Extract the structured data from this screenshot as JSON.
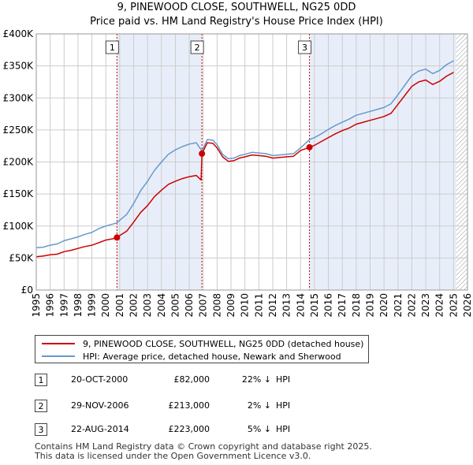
{
  "title_line1": "9, PINEWOOD CLOSE, SOUTHWELL, NG25 0DD",
  "title_line2": "Price paid vs. HM Land Registry's House Price Index (HPI)",
  "legend": {
    "series1": "9, PINEWOOD CLOSE, SOUTHWELL, NG25 0DD (detached house)",
    "series2": "HPI: Average price, detached house, Newark and Sherwood"
  },
  "transactions": [
    {
      "num": "1",
      "date": "20-OCT-2000",
      "price": "£82,000",
      "pct": "22% ↓",
      "hpi": "HPI"
    },
    {
      "num": "2",
      "date": "29-NOV-2006",
      "price": "£213,000",
      "pct": "2% ↓",
      "hpi": "HPI"
    },
    {
      "num": "3",
      "date": "22-AUG-2014",
      "price": "£223,000",
      "pct": "5% ↓",
      "hpi": "HPI"
    }
  ],
  "footer_line1": "Contains HM Land Registry data © Crown copyright and database right 2025.",
  "footer_line2": "This data is licensed under the Open Government Licence v3.0.",
  "colors": {
    "price_line": "#cc0000",
    "hpi_line": "#6699cc",
    "shade": "#e8eef9",
    "grid": "#cccccc",
    "marker_line": "#cc0000",
    "hatch": "#999999"
  },
  "chart_data": {
    "type": "line",
    "title": "9, PINEWOOD CLOSE, SOUTHWELL, NG25 0DD",
    "subtitle": "Price paid vs. HM Land Registry's House Price Index (HPI)",
    "xlim": [
      1995,
      2026
    ],
    "ylim": [
      0,
      400000
    ],
    "x_ticks": [
      "1995",
      "1996",
      "1997",
      "1998",
      "1999",
      "2000",
      "2001",
      "2002",
      "2003",
      "2004",
      "2005",
      "2006",
      "2007",
      "2008",
      "2009",
      "2010",
      "2011",
      "2012",
      "2013",
      "2014",
      "2015",
      "2016",
      "2017",
      "2018",
      "2019",
      "2020",
      "2021",
      "2022",
      "2023",
      "2024",
      "2025",
      "2026"
    ],
    "y_ticks": [
      {
        "value": 0,
        "label": "£0"
      },
      {
        "value": 50000,
        "label": "£50K"
      },
      {
        "value": 100000,
        "label": "£100K"
      },
      {
        "value": 150000,
        "label": "£150K"
      },
      {
        "value": 200000,
        "label": "£200K"
      },
      {
        "value": 250000,
        "label": "£250K"
      },
      {
        "value": 300000,
        "label": "£300K"
      },
      {
        "value": 350000,
        "label": "£350K"
      },
      {
        "value": 400000,
        "label": "£400K"
      }
    ],
    "grid": true,
    "forecast_start": 2025.2,
    "sales": [
      {
        "label": "1",
        "x": 2000.8,
        "y": 82000
      },
      {
        "label": "2",
        "x": 2006.91,
        "y": 213000
      },
      {
        "label": "3",
        "x": 2014.64,
        "y": 223000
      }
    ],
    "series": [
      {
        "name": "HPI: Average price, detached house, Newark and Sherwood",
        "x": [
          1995.0,
          1995.5,
          1996.0,
          1996.5,
          1997.0,
          1997.5,
          1998.0,
          1998.5,
          1999.0,
          1999.5,
          2000.0,
          2000.5,
          2000.8,
          2001.0,
          2001.5,
          2002.0,
          2002.5,
          2003.0,
          2003.5,
          2004.0,
          2004.5,
          2005.0,
          2005.5,
          2006.0,
          2006.5,
          2006.91,
          2007.3,
          2007.7,
          2008.0,
          2008.4,
          2008.8,
          2009.2,
          2009.6,
          2010.0,
          2010.5,
          2011.0,
          2011.5,
          2012.0,
          2012.5,
          2013.0,
          2013.5,
          2014.0,
          2014.64,
          2015.0,
          2015.5,
          2016.0,
          2016.5,
          2017.0,
          2017.5,
          2018.0,
          2018.5,
          2019.0,
          2019.5,
          2020.0,
          2020.5,
          2021.0,
          2021.5,
          2022.0,
          2022.5,
          2023.0,
          2023.5,
          2024.0,
          2024.5,
          2025.0
        ],
        "values": [
          66000,
          67000,
          70000,
          72000,
          77000,
          80000,
          83000,
          87000,
          90000,
          96000,
          100000,
          103000,
          105000,
          109000,
          118000,
          135000,
          155000,
          170000,
          187000,
          200000,
          212000,
          219000,
          224000,
          228000,
          230000,
          217000,
          235000,
          234000,
          227000,
          212000,
          205000,
          206000,
          210000,
          212000,
          215000,
          214000,
          213000,
          210000,
          211000,
          212000,
          213000,
          222000,
          235000,
          238000,
          244000,
          251000,
          257000,
          262000,
          267000,
          273000,
          276000,
          279000,
          282000,
          285000,
          291000,
          305000,
          320000,
          335000,
          342000,
          345000,
          338000,
          343000,
          352000,
          358000
        ]
      },
      {
        "name": "9, PINEWOOD CLOSE, SOUTHWELL, NG25 0DD (detached house)",
        "x": [
          1995.0,
          1995.5,
          1996.0,
          1996.5,
          1997.0,
          1997.5,
          1998.0,
          1998.5,
          1999.0,
          1999.5,
          2000.0,
          2000.5,
          2000.8,
          2001.0,
          2001.5,
          2002.0,
          2002.5,
          2003.0,
          2003.5,
          2004.0,
          2004.5,
          2005.0,
          2005.5,
          2006.0,
          2006.5,
          2006.85,
          2006.91,
          2007.3,
          2007.7,
          2008.0,
          2008.4,
          2008.8,
          2009.2,
          2009.6,
          2010.0,
          2010.5,
          2011.0,
          2011.5,
          2012.0,
          2012.5,
          2013.0,
          2013.5,
          2014.0,
          2014.64,
          2015.0,
          2015.5,
          2016.0,
          2016.5,
          2017.0,
          2017.5,
          2018.0,
          2018.5,
          2019.0,
          2019.5,
          2020.0,
          2020.5,
          2021.0,
          2021.5,
          2022.0,
          2022.5,
          2023.0,
          2023.5,
          2024.0,
          2024.5,
          2025.0
        ],
        "values": [
          52000,
          53000,
          55000,
          56000,
          60000,
          62000,
          65000,
          68000,
          70000,
          74000,
          78000,
          80000,
          82000,
          85000,
          92000,
          106000,
          121000,
          132000,
          146000,
          156000,
          165000,
          170000,
          174000,
          177000,
          179000,
          172000,
          213000,
          230000,
          229000,
          222000,
          208000,
          201000,
          202000,
          206000,
          208000,
          211000,
          210000,
          209000,
          206000,
          207000,
          208000,
          209000,
          218000,
          223000,
          226000,
          232000,
          238000,
          244000,
          249000,
          253000,
          259000,
          262000,
          265000,
          268000,
          271000,
          276000,
          290000,
          304000,
          318000,
          325000,
          328000,
          321000,
          326000,
          334000,
          340000
        ]
      }
    ]
  }
}
